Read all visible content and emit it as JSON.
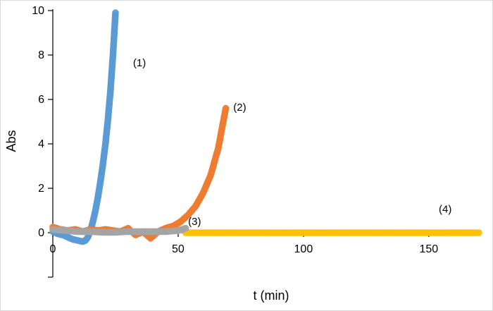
{
  "chart_data": {
    "type": "scatter",
    "title": "",
    "xlabel": "t (min)",
    "ylabel": "Abs",
    "xlim": [
      0,
      170
    ],
    "ylim": [
      -2,
      10
    ],
    "x_ticks": [
      0,
      50,
      100,
      150
    ],
    "y_ticks": [
      0,
      2,
      4,
      6,
      8,
      10
    ],
    "grid": false,
    "legend": "none",
    "series": [
      {
        "label": "(1)",
        "color": "#5b9bd5",
        "points": [
          [
            0,
            0.05
          ],
          [
            2,
            -0.05
          ],
          [
            4,
            -0.1
          ],
          [
            6,
            -0.2
          ],
          [
            8,
            -0.3
          ],
          [
            10,
            -0.35
          ],
          [
            12,
            -0.4
          ],
          [
            13,
            -0.35
          ],
          [
            14,
            -0.2
          ],
          [
            15,
            0.1
          ],
          [
            16,
            0.5
          ],
          [
            17,
            1.0
          ],
          [
            18,
            1.6
          ],
          [
            19,
            2.3
          ],
          [
            20,
            3.1
          ],
          [
            21,
            4.0
          ],
          [
            22,
            5.1
          ],
          [
            23,
            6.4
          ],
          [
            24,
            8.0
          ],
          [
            25,
            9.9
          ]
        ]
      },
      {
        "label": "(2)",
        "color": "#ed7d31",
        "points": [
          [
            0,
            0.25
          ],
          [
            3,
            0.15
          ],
          [
            6,
            0.1
          ],
          [
            9,
            0.15
          ],
          [
            12,
            0.05
          ],
          [
            15,
            0.15
          ],
          [
            18,
            0.1
          ],
          [
            21,
            0.15
          ],
          [
            24,
            0.1
          ],
          [
            27,
            0.05
          ],
          [
            30,
            0.2
          ],
          [
            33,
            -0.1
          ],
          [
            36,
            0.05
          ],
          [
            39,
            -0.25
          ],
          [
            42,
            0.05
          ],
          [
            45,
            0.2
          ],
          [
            48,
            0.3
          ],
          [
            51,
            0.5
          ],
          [
            54,
            0.8
          ],
          [
            57,
            1.2
          ],
          [
            60,
            1.8
          ],
          [
            63,
            2.6
          ],
          [
            66,
            3.8
          ],
          [
            69,
            5.6
          ]
        ]
      },
      {
        "label": "(3)",
        "color": "#a5a5a5",
        "points": [
          [
            0,
            0.15
          ],
          [
            5,
            0.1
          ],
          [
            10,
            0.05
          ],
          [
            15,
            0.05
          ],
          [
            20,
            0.02
          ],
          [
            25,
            0.02
          ],
          [
            30,
            0.05
          ],
          [
            35,
            0.05
          ],
          [
            40,
            0.05
          ],
          [
            45,
            0.05
          ],
          [
            50,
            0.1
          ],
          [
            53,
            0.2
          ]
        ]
      },
      {
        "label": "(4)",
        "color": "#ffc000",
        "points": [
          [
            53,
            0.0
          ],
          [
            60,
            0.0
          ],
          [
            70,
            0.0
          ],
          [
            80,
            0.0
          ],
          [
            90,
            0.0
          ],
          [
            100,
            0.0
          ],
          [
            110,
            0.0
          ],
          [
            120,
            0.0
          ],
          [
            130,
            0.0
          ],
          [
            140,
            0.0
          ],
          [
            150,
            0.0
          ],
          [
            160,
            0.0
          ],
          [
            170,
            0.0
          ]
        ]
      }
    ],
    "annotations": [
      {
        "text": "(1)",
        "x": 32,
        "y": 7.5
      },
      {
        "text": "(2)",
        "x": 72,
        "y": 5.5
      },
      {
        "text": "(3)",
        "x": 54,
        "y": 0.35
      },
      {
        "text": "(4)",
        "x": 154,
        "y": 0.9
      }
    ]
  }
}
